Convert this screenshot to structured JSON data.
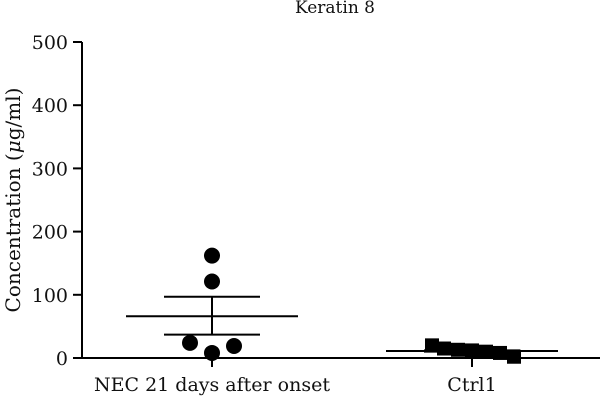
{
  "chart_data": {
    "type": "scatter",
    "title": "Keratin 8",
    "ylabel": "Concentration (μg/ml)",
    "ylabel_prefix": "Concentration (",
    "ylabel_unit_italic": "μ",
    "ylabel_suffix": "g/ml)",
    "xlabel": "",
    "ylim": [
      0,
      500
    ],
    "yticks": [
      0,
      100,
      200,
      300,
      400,
      500
    ],
    "grid": false,
    "categories": [
      "NEC 21 days after onset",
      "Ctrl1"
    ],
    "series": [
      {
        "category": "NEC 21 days after onset",
        "marker": "circle",
        "values": [
          162,
          121,
          24,
          19,
          8
        ],
        "mean": 66,
        "sem_upper": 97,
        "sem_lower": 37
      },
      {
        "category": "Ctrl1",
        "marker": "square",
        "values": [
          20,
          15,
          13,
          12,
          10,
          8,
          2
        ],
        "mean": 11,
        "sem_upper": 12,
        "sem_lower": 10
      }
    ],
    "colors": {
      "marks": "#000000",
      "axes": "#000000"
    }
  }
}
